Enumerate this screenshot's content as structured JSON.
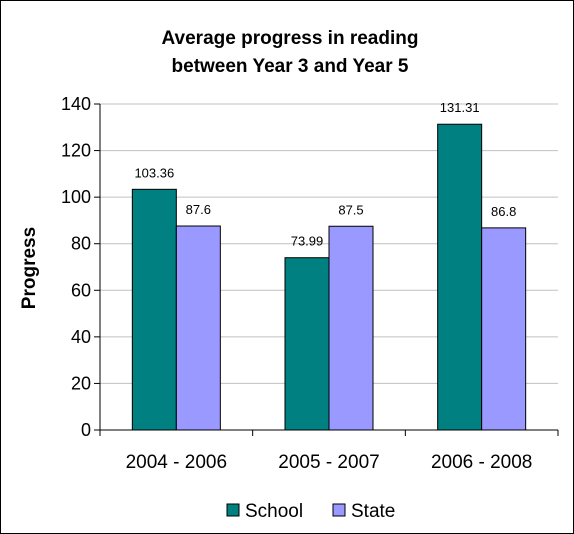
{
  "chart_data": {
    "type": "bar",
    "title_lines": [
      "Average progress in reading",
      "between Year 3 and Year 5"
    ],
    "xlabel": "",
    "ylabel": "Progress",
    "ylim": [
      0,
      140
    ],
    "yticks": [
      0,
      20,
      40,
      60,
      80,
      100,
      120,
      140
    ],
    "yticks_labels": [
      "0",
      "20",
      "40",
      "60",
      "80",
      "100",
      "120",
      "140"
    ],
    "grid": true,
    "legend_position": "bottom",
    "categories": [
      "2004 - 2006",
      "2005 - 2007",
      "2006 - 2008"
    ],
    "series": [
      {
        "name": "School",
        "color": "#008080",
        "values": [
          103.36,
          73.99,
          131.31
        ],
        "labels": [
          "103.36",
          "73.99",
          "131.31"
        ]
      },
      {
        "name": "State",
        "color": "#9999FF",
        "values": [
          87.6,
          87.5,
          86.8
        ],
        "labels": [
          "87.6",
          "87.5",
          "86.8"
        ]
      }
    ]
  }
}
